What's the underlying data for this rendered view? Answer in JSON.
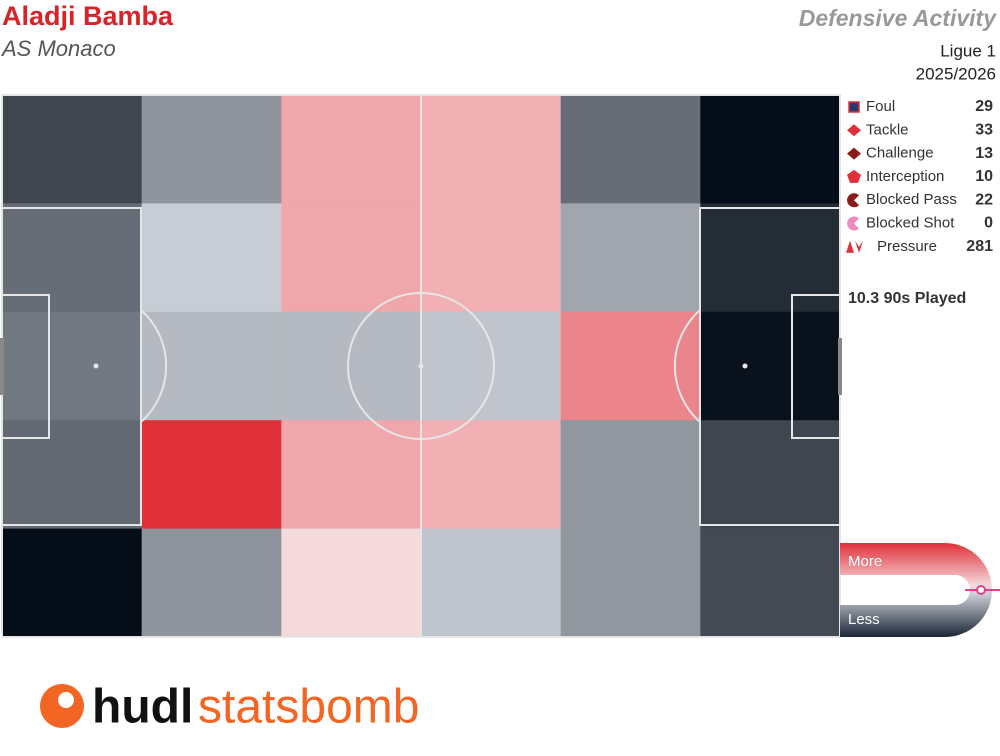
{
  "chart_data": {
    "type": "heatmap",
    "title": "Aladji Bamba",
    "subtitle": "AS Monaco",
    "heading": "Defensive Activity",
    "competition": "Ligue 1",
    "season": "2025/2026",
    "zlim": [
      0,
      100
    ],
    "colorscale": [
      "#050d18",
      "#c8ccd4",
      "#f5dadc",
      "#e0303a"
    ],
    "grid": [
      [
        15,
        35,
        72,
        70,
        25,
        0
      ],
      [
        25,
        50,
        72,
        70,
        40,
        8
      ],
      [
        28,
        45,
        45,
        48,
        80,
        1
      ],
      [
        24,
        100,
        72,
        70,
        36,
        15
      ],
      [
        0,
        35,
        60,
        48,
        36,
        16
      ]
    ],
    "series": [
      {
        "name": "Foul",
        "values": [
          29
        ],
        "color": "#2a3a6a",
        "marker": "square"
      },
      {
        "name": "Tackle",
        "values": [
          33
        ],
        "color": "#e0303a",
        "marker": "diamond"
      },
      {
        "name": "Challenge",
        "values": [
          13
        ],
        "color": "#8b1a1a",
        "marker": "diamond"
      },
      {
        "name": "Interception",
        "values": [
          10
        ],
        "color": "#e0303a",
        "marker": "pentagon"
      },
      {
        "name": "Blocked Pass",
        "values": [
          22
        ],
        "color": "#8b1a1a",
        "marker": "pacman"
      },
      {
        "name": "Blocked Shot",
        "values": [
          0
        ],
        "color": "#f08ac0",
        "marker": "pacman"
      },
      {
        "name": "Pressure",
        "values": [
          281
        ],
        "color": "#e0303a",
        "marker": "triangle"
      }
    ],
    "played": {
      "value": 10.3,
      "label": "10.3 90s Played"
    },
    "scale_high": "More",
    "scale_low": "Less",
    "brand": [
      "hudl",
      "statsbomb"
    ]
  }
}
